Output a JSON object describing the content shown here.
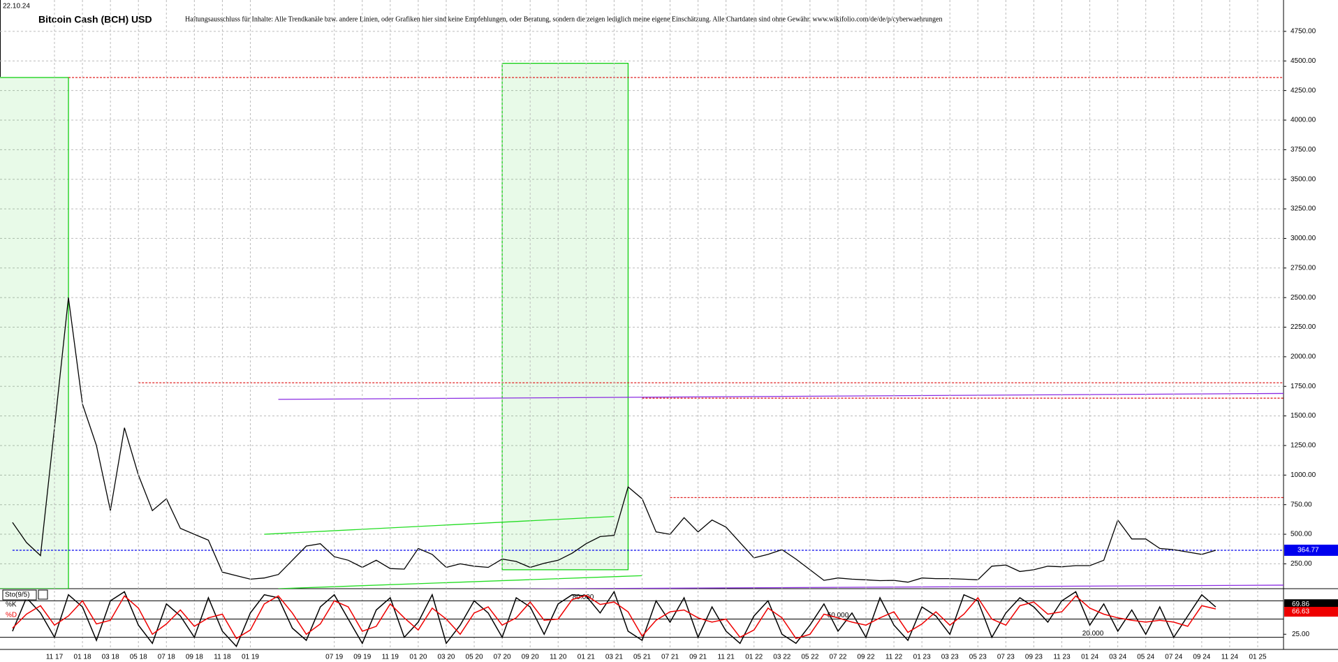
{
  "chart_data": {
    "type": "line",
    "date": "22.10.24",
    "title": "Bitcoin Cash (BCH) USD",
    "disclaimer": "Haftungsausschluss für Inhalte: Alle Trendkanäle bzw. andere Linien, oder Grafiken hier sind keine Empfehlungen, oder Beratung, sondern die zeigen lediglich meine eigene Einschätzung. Alle Chartdaten sind ohne Gewähr. www.wikifolio.com/de/de/p/cyberwaehrungen",
    "x": [
      "08 17",
      "09 17",
      "10 17",
      "11 17",
      "12 17",
      "01 18",
      "02 18",
      "03 18",
      "04 18",
      "05 18",
      "06 18",
      "07 18",
      "08 18",
      "09 18",
      "10 18",
      "11 18",
      "12 18",
      "01 19",
      "02 19",
      "03 19",
      "04 19",
      "05 19",
      "06 19",
      "07 19",
      "08 19",
      "09 19",
      "10 19",
      "11 19",
      "12 19",
      "01 20",
      "02 20",
      "03 20",
      "04 20",
      "05 20",
      "06 20",
      "07 20",
      "08 20",
      "09 20",
      "10 20",
      "11 20",
      "12 20",
      "01 21",
      "02 21",
      "03 21",
      "04 21",
      "05 21",
      "06 21",
      "07 21",
      "08 21",
      "09 21",
      "10 21",
      "11 21",
      "12 21",
      "01 22",
      "02 22",
      "03 22",
      "04 22",
      "05 22",
      "06 22",
      "07 22",
      "08 22",
      "09 22",
      "10 22",
      "11 22",
      "12 22",
      "01 23",
      "02 23",
      "03 23",
      "04 23",
      "05 23",
      "06 23",
      "07 23",
      "08 23",
      "09 23",
      "10 23",
      "11 23",
      "12 23",
      "01 24",
      "02 24",
      "03 24",
      "04 24",
      "05 24",
      "06 24",
      "07 24",
      "08 24",
      "09 24",
      "10 24"
    ],
    "series": [
      {
        "color": "#000000",
        "values": [
          600,
          430,
          320,
          1400,
          2500,
          1600,
          1250,
          700,
          1400,
          1000,
          700,
          800,
          550,
          500,
          450,
          180,
          150,
          120,
          130,
          160,
          280,
          400,
          420,
          310,
          280,
          220,
          280,
          210,
          205,
          380,
          330,
          220,
          250,
          230,
          220,
          290,
          270,
          220,
          255,
          280,
          340,
          420,
          480,
          490,
          900,
          800,
          520,
          500,
          640,
          520,
          620,
          560,
          430,
          300,
          330,
          370,
          290,
          200,
          110,
          130,
          120,
          115,
          108,
          110,
          95,
          130,
          125,
          125,
          120,
          115,
          230,
          240,
          185,
          200,
          230,
          225,
          235,
          235,
          280,
          620,
          460,
          460,
          380,
          370,
          350,
          330,
          364.77
        ]
      }
    ],
    "last_price_color": "#0000ee",
    "ylim": [
      40,
      5015
    ],
    "yticks": [
      {
        "value": 250,
        "label": "250.00"
      },
      {
        "value": 500,
        "label": "500.00"
      },
      {
        "value": 750,
        "label": "750.00"
      },
      {
        "value": 1000,
        "label": "1000.00"
      },
      {
        "value": 1250,
        "label": "1250.00"
      },
      {
        "value": 1500,
        "label": "1500.00"
      },
      {
        "value": 1750,
        "label": "1750.00"
      },
      {
        "value": 2000,
        "label": "2000.00"
      },
      {
        "value": 2250,
        "label": "2250.00"
      },
      {
        "value": 2500,
        "label": "2500.00"
      },
      {
        "value": 2750,
        "label": "2750.00"
      },
      {
        "value": 3000,
        "label": "3000.00"
      },
      {
        "value": 3250,
        "label": "3250.00"
      },
      {
        "value": 3500,
        "label": "3500.00"
      },
      {
        "value": 3750,
        "label": "3750.00"
      },
      {
        "value": 4000,
        "label": "4000.00"
      },
      {
        "value": 4250,
        "label": "4250.00"
      },
      {
        "value": 4500,
        "label": "4500.00"
      },
      {
        "value": 4750,
        "label": "4750.00"
      }
    ],
    "xticks": [
      "11 17",
      "01 18",
      "03 18",
      "05 18",
      "07 18",
      "09 18",
      "11 18",
      "01 19",
      "07 19",
      "09 19",
      "11 19",
      "01 20",
      "03 20",
      "05 20",
      "07 20",
      "09 20",
      "11 20",
      "01 21",
      "03 21",
      "05 21",
      "07 21",
      "09 21",
      "11 21",
      "01 22",
      "03 22",
      "05 22",
      "07 22",
      "09 22",
      "11 22",
      "01 23",
      "03 23",
      "05 23",
      "07 23",
      "09 23",
      "11 23",
      "01 24",
      "03 24",
      "05 24",
      "07 24",
      "09 24",
      "11 24",
      "01 25"
    ],
    "grid": true,
    "rects": [
      {
        "x": [
          "07 17",
          "12 17"
        ],
        "y": [
          40,
          4360
        ],
        "color": "#00cc00"
      },
      {
        "x": [
          "07 20",
          "04 21"
        ],
        "y": [
          200,
          4480
        ],
        "color": "#00cc00"
      }
    ],
    "lines": [
      {
        "x": [
          "12 17",
          "03 25"
        ],
        "y": [
          4360,
          4360
        ],
        "color": "#e02020",
        "dash": true
      },
      {
        "x": [
          "05 18",
          "03 25"
        ],
        "y": [
          1780,
          1780
        ],
        "color": "#e02020",
        "dash": true
      },
      {
        "x": [
          "05 21",
          "03 25"
        ],
        "y": [
          1650,
          1650
        ],
        "color": "#e02020",
        "dash": true
      },
      {
        "x": [
          "07 21",
          "03 25"
        ],
        "y": [
          810,
          810
        ],
        "color": "#e02020",
        "dash": true
      },
      {
        "x": [
          "08 17",
          "03 25"
        ],
        "y": [
          364.77,
          364.77
        ],
        "color": "#0000ee",
        "dash": true
      },
      {
        "x": [
          "03 19",
          "03 25"
        ],
        "y": [
          1640,
          1690
        ],
        "color": "#8a2be2",
        "dash": false
      },
      {
        "x": [
          "07 19",
          "03 25"
        ],
        "y": [
          30,
          70
        ],
        "color": "#8a2be2",
        "dash": false
      },
      {
        "x": [
          "02 19",
          "03 21"
        ],
        "y": [
          500,
          650
        ],
        "color": "#22dd22",
        "dash": false
      },
      {
        "x": [
          "03 19",
          "05 21"
        ],
        "y": [
          40,
          150
        ],
        "color": "#22dd22",
        "dash": false
      }
    ],
    "lower_panel": {
      "title": "Sto(9/5)",
      "ylim": [
        0,
        100
      ],
      "y2ticks": [
        {
          "value": 25,
          "label": "25.00"
        }
      ],
      "levels": [
        {
          "value": 80,
          "label": "80.000"
        },
        {
          "value": 50,
          "label": "50.000"
        },
        {
          "value": 20,
          "label": "20.000"
        }
      ],
      "series": [
        {
          "name": "%K",
          "color": "#000000",
          "label_bg": "#000000",
          "values": [
            30,
            85,
            60,
            20,
            90,
            70,
            15,
            80,
            95,
            40,
            10,
            75,
            55,
            20,
            85,
            30,
            5,
            60,
            90,
            85,
            35,
            15,
            70,
            90,
            50,
            10,
            65,
            85,
            20,
            45,
            90,
            10,
            40,
            80,
            60,
            20,
            85,
            70,
            25,
            75,
            90,
            88,
            60,
            95,
            30,
            15,
            80,
            45,
            85,
            20,
            70,
            30,
            10,
            55,
            80,
            25,
            10,
            40,
            75,
            30,
            60,
            20,
            85,
            40,
            15,
            70,
            55,
            25,
            90,
            80,
            20,
            60,
            85,
            70,
            45,
            80,
            95,
            40,
            75,
            30,
            65,
            25,
            70,
            20,
            55,
            90,
            69.86
          ]
        },
        {
          "name": "%D",
          "color": "#ee0000",
          "label_bg": "#ee0000",
          "values": [
            35,
            58,
            72,
            40,
            55,
            80,
            42,
            48,
            88,
            68,
            25,
            42,
            65,
            38,
            52,
            58,
            18,
            32,
            75,
            88,
            60,
            25,
            42,
            80,
            70,
            30,
            38,
            75,
            52,
            32,
            68,
            50,
            25,
            60,
            70,
            40,
            52,
            78,
            48,
            50,
            82,
            89,
            74,
            78,
            62,
            22,
            48,
            62,
            65,
            52,
            45,
            50,
            20,
            32,
            68,
            52,
            18,
            25,
            58,
            52,
            45,
            40,
            52,
            62,
            28,
            42,
            62,
            40,
            58,
            85,
            50,
            40,
            72,
            78,
            58,
            62,
            88,
            68,
            58,
            52,
            48,
            45,
            48,
            45,
            38,
            72,
            66.63
          ]
        }
      ]
    }
  }
}
